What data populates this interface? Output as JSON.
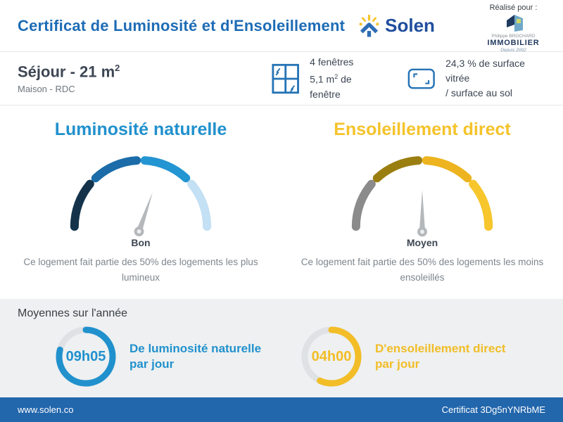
{
  "header": {
    "title": "Certificat de Luminosité et d'Ensoleillement",
    "brand": "Solen",
    "realise_pour": "Réalisé pour :",
    "client": {
      "line1": "Philippe BROCHARD",
      "line2": "IMMOBILIER",
      "line3": "Depuis 2002"
    }
  },
  "room": {
    "title_main": "Séjour - 21 m",
    "title_sup": "2",
    "subtitle": "Maison - RDC",
    "windows": {
      "line1": "4 fenêtres",
      "line2_a": "5,1 m",
      "line2_sup": "2",
      "line2_b": " de fenêtre"
    },
    "glazing": {
      "line1": "24,3 % de surface vitrée",
      "line2": "/ surface au sol"
    }
  },
  "gauges": [
    {
      "title": "Luminosité naturelle",
      "accent_color": "#2191cd",
      "rating": "Bon",
      "description": "Ce logement fait partie des 50% des logements les plus lumineux",
      "needle_angle_deg": 19,
      "segments": [
        {
          "from_deg": 180,
          "to_deg": 140,
          "color": "#14334b"
        },
        {
          "from_deg": 133,
          "to_deg": 93.5,
          "color": "#1b6ca8"
        },
        {
          "from_deg": 86.5,
          "to_deg": 47,
          "color": "#2395d2"
        },
        {
          "from_deg": 40,
          "to_deg": 0,
          "color": "#c3e0f4"
        }
      ]
    },
    {
      "title": "Ensoleillement direct",
      "accent_color": "#f5c32b",
      "rating": "Moyen",
      "description": "Ce logement fait partie des 50% des logements les moins ensoleillés",
      "needle_angle_deg": 0,
      "segments": [
        {
          "from_deg": 180,
          "to_deg": 140,
          "color": "#8b8b8b"
        },
        {
          "from_deg": 133,
          "to_deg": 93.5,
          "color": "#9b7e10"
        },
        {
          "from_deg": 86.5,
          "to_deg": 47,
          "color": "#edb41f"
        },
        {
          "from_deg": 40,
          "to_deg": 0,
          "color": "#f6c62c"
        }
      ]
    }
  ],
  "averages": {
    "title": "Moyennes sur l'année",
    "items": [
      {
        "value": "09h05",
        "percent": 79,
        "color": "#2191cd",
        "label_lines": [
          "De luminosité naturelle",
          "par jour"
        ]
      },
      {
        "value": "04h00",
        "percent": 57,
        "color": "#f2bd27",
        "label_lines": [
          "D'ensoleillement direct",
          "par jour"
        ]
      }
    ],
    "ring_track_color": "#dfe2e4"
  },
  "footer": {
    "left": "www.solen.co",
    "right": "Certificat 3Dg5nYNRbME",
    "bg_color": "#2266ac"
  },
  "colors": {
    "title_blue": "#1e6cb5",
    "panel_bg": "#eef0f1",
    "icon_blue": "#2473b5"
  }
}
